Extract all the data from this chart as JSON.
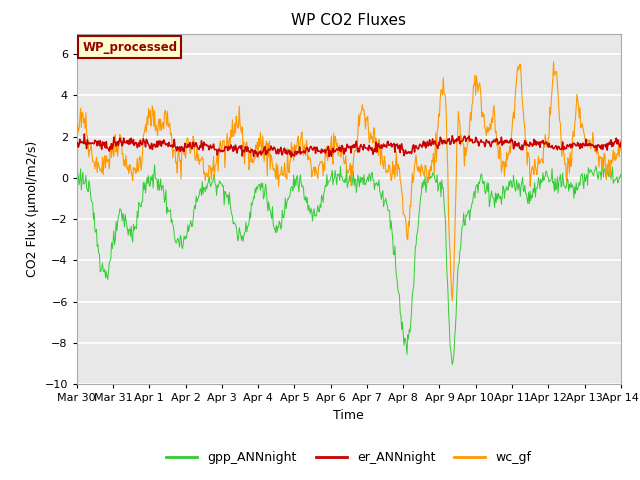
{
  "title": "WP CO2 Fluxes",
  "xlabel": "Time",
  "ylabel": "CO2 Flux (μmol/m2/s)",
  "ylim": [
    -10,
    7
  ],
  "yticks": [
    -10,
    -8,
    -6,
    -4,
    -2,
    0,
    2,
    4,
    6
  ],
  "xtick_labels": [
    "Mar 30",
    "Mar 31",
    "Apr 1",
    "Apr 2",
    "Apr 3",
    "Apr 4",
    "Apr 5",
    "Apr 6",
    "Apr 7",
    "Apr 8",
    "Apr 9",
    "Apr 10",
    "Apr 11",
    "Apr 12",
    "Apr 13",
    "Apr 14"
  ],
  "legend_labels": [
    "gpp_ANNnight",
    "er_ANNnight",
    "wc_gf"
  ],
  "line_colors": {
    "gpp": "#33cc33",
    "er": "#cc0000",
    "wc": "#ff9900"
  },
  "watermark_text": "WP_processed",
  "watermark_color": "#990000",
  "watermark_bg": "#ffffcc",
  "background_color": "#e8e8e8",
  "title_fontsize": 11,
  "axis_fontsize": 9,
  "legend_fontsize": 9,
  "tick_fontsize": 8
}
